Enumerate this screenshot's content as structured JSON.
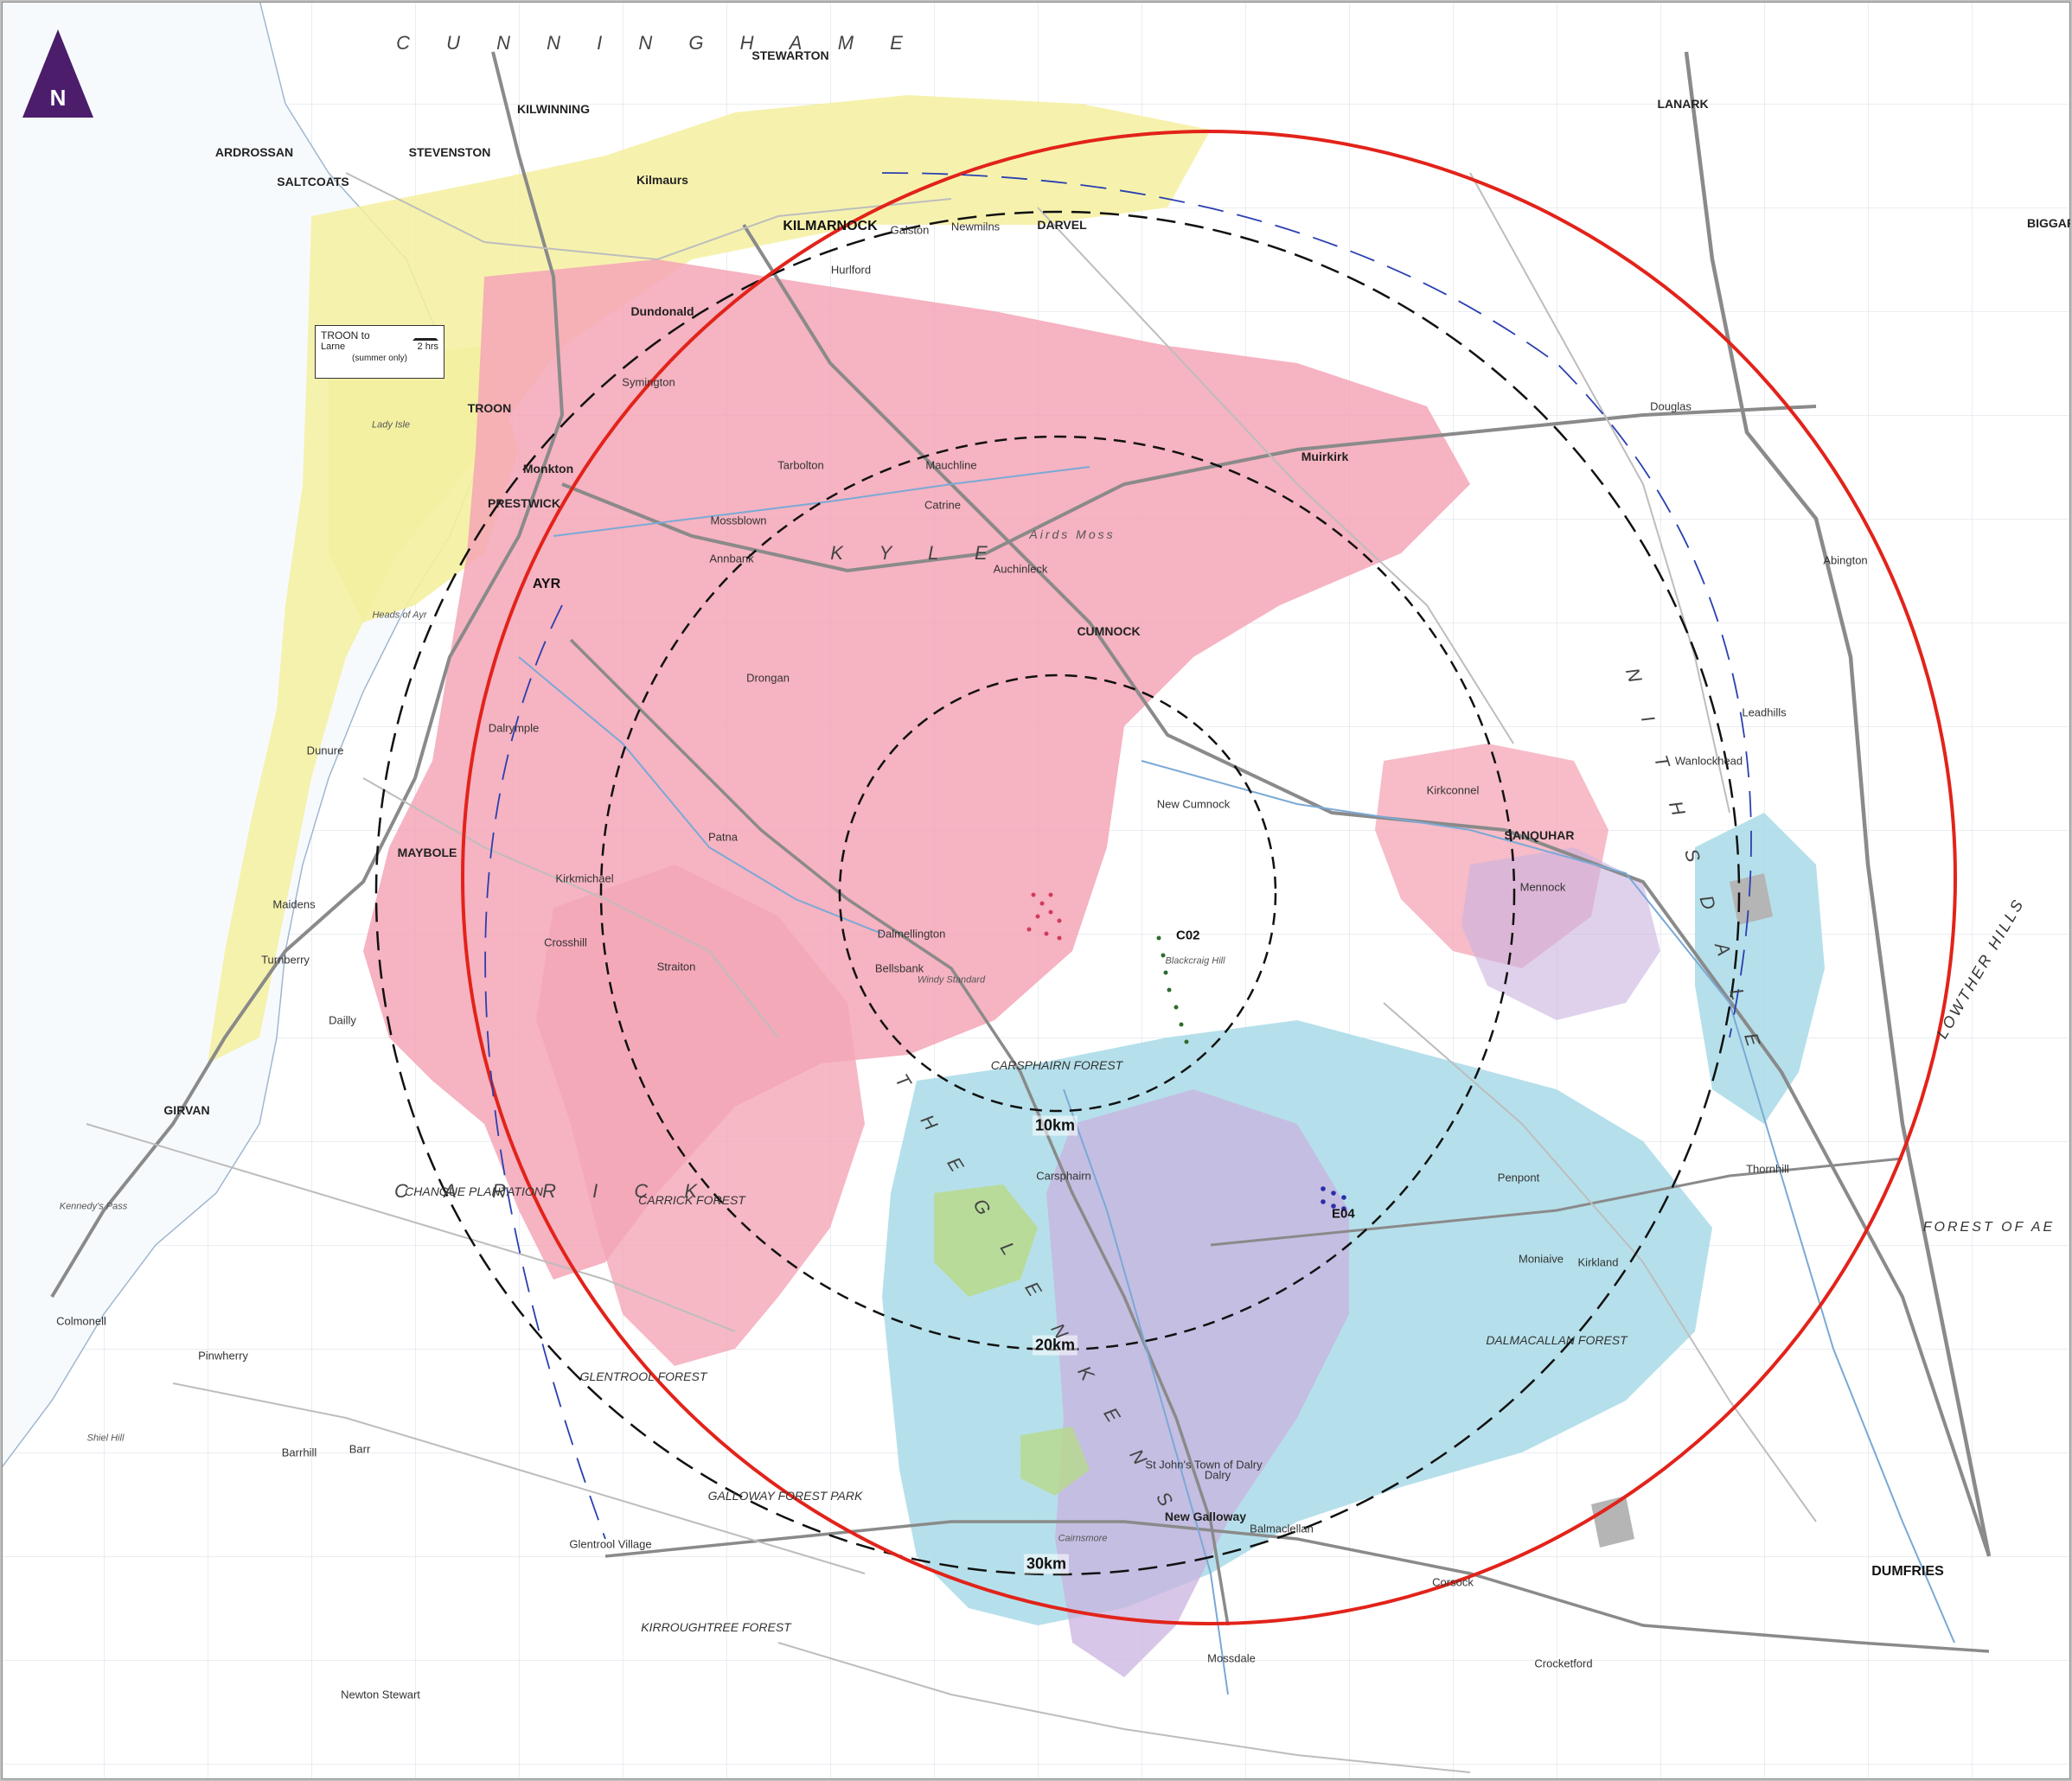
{
  "north_arrow": {
    "letter": "N",
    "color": "#4b1d6b"
  },
  "rings": [
    {
      "label": "10km",
      "style": "dashed-black"
    },
    {
      "label": "20km",
      "style": "dashed-black"
    },
    {
      "label": "30km",
      "style": "dashed-black"
    },
    {
      "label": "",
      "style": "solid-red"
    }
  ],
  "sites": [
    {
      "label": "C02"
    },
    {
      "label": "E04"
    }
  ],
  "ferry": {
    "title": "TROON to",
    "destination": "Larne",
    "duration": "2 hrs",
    "note": "(summer only)"
  },
  "colors": {
    "ring_red": "#e2231a",
    "zone_pink": "#f4a6b6",
    "zone_yellow": "#f4f0a0",
    "zone_blue": "#a8dbe8",
    "zone_lilac": "#c9b3df",
    "zone_grey": "#b5b5b5",
    "zone_green": "#b8d98c",
    "road_main": "#8a8a8a",
    "road_minor": "#bdbdbd",
    "river": "#7aa9d6"
  },
  "places": {
    "regions": [
      "C U N N I N G H A M E",
      "K Y L E",
      "C A R R I C K",
      "N I T H S D A L E",
      "T H E   G L E N K E N S",
      "LOWTHER HILLS",
      "FOREST OF AE"
    ],
    "towns": [
      "KILMARNOCK",
      "AYR",
      "PRESTWICK",
      "TROON",
      "MAYBOLE",
      "GIRVAN",
      "CUMNOCK",
      "SANQUHAR",
      "DUMFRIES",
      "LANARK",
      "KILWINNING",
      "STEVENSTON",
      "SALTCOATS",
      "ARDROSSAN",
      "STEWARTON",
      "DARVEL",
      "BIGGAR"
    ],
    "villages": [
      "Mauchline",
      "Catrine",
      "Auchinleck",
      "Tarbolton",
      "Mossblown",
      "Annbank",
      "Drongan",
      "Patna",
      "Dalmellington",
      "Bellsbank",
      "New Cumnock",
      "Kirkconnel",
      "Mennock",
      "Carsphairn",
      "Dalry",
      "Moniaive",
      "Penpont",
      "Thornhill",
      "Galston",
      "Hurlford",
      "Newmilns",
      "Muirkirk",
      "Dalrymple",
      "Kirkmichael",
      "Crosshill",
      "Straiton",
      "Dailly",
      "Barr",
      "Colmonell",
      "Pinwherry",
      "Barrhill",
      "Newton Stewart",
      "Kilmaurs",
      "Symington",
      "Monkton",
      "Dundonald",
      "Douglas",
      "Abington",
      "Leadhills",
      "Wanlockhead",
      "Dunure",
      "Maidens",
      "Turnberry",
      "Glentrool Village",
      "Balmaclellan",
      "Mossdale",
      "Corsock",
      "Crocketford",
      "Kirkland",
      "St John's Town of Dalry",
      "New Galloway"
    ],
    "forests": [
      "GLENTROOL FOREST",
      "CARRICK FOREST",
      "GALLOWAY FOREST PARK",
      "DALMACALLAN FOREST",
      "CHANGUE PLANTATION",
      "CARSPHAIRN FOREST",
      "KIRROUGHTREE FOREST"
    ],
    "hills": [
      "Airds Moss",
      "Shiel Hill",
      "Cairnsmore",
      "Windy Standard",
      "Blackcraig Hill",
      "Kennedy's Pass",
      "Heads of Ayr",
      "Lady Isle"
    ]
  }
}
